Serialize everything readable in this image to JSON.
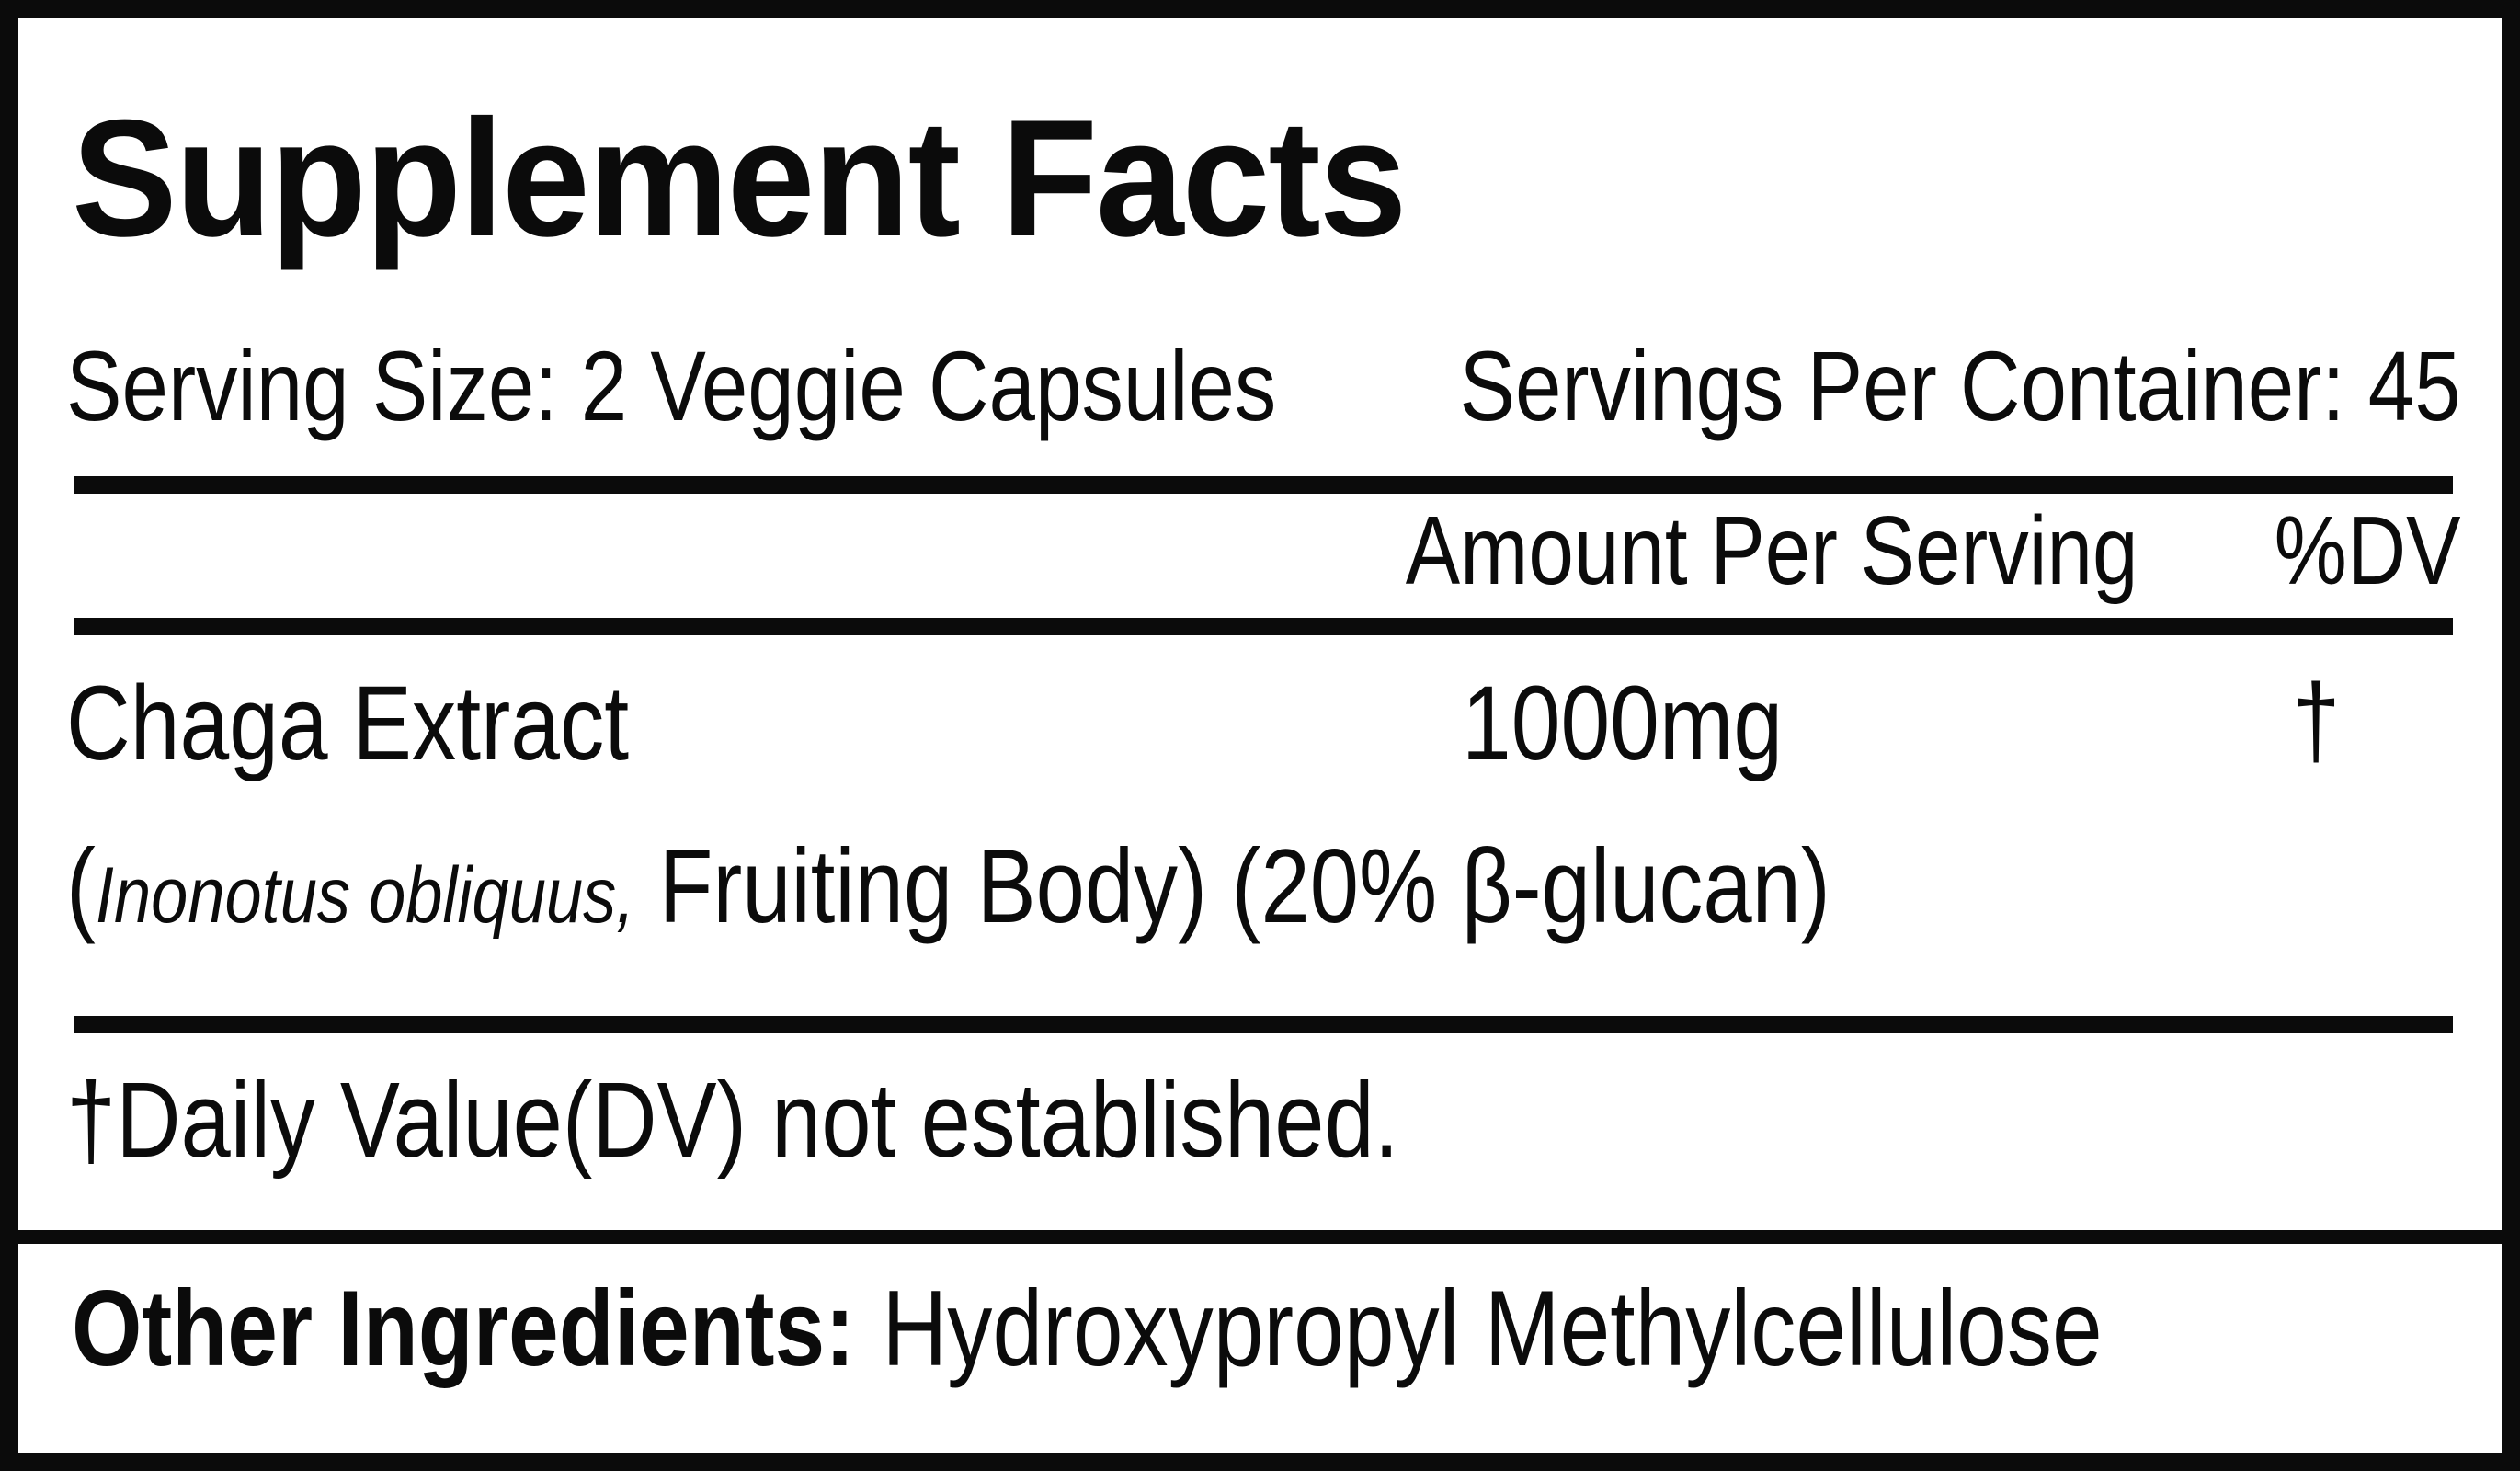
{
  "label": {
    "title": "Supplement Facts",
    "serving_size": "Serving Size: 2 Veggie Capsules",
    "servings_per_container": "Servings Per Container: 45",
    "columns": {
      "amount": "Amount Per Serving",
      "dv": "%DV"
    },
    "rows": [
      {
        "name": "Chaga Extract",
        "detail_prefix": "(",
        "detail_italic": "Inonotus obliquus,",
        "detail_suffix": " Fruiting Body) (20% β-glucan)",
        "amount": "1000mg",
        "dv": "†"
      }
    ],
    "footnote": "†Daily Value(DV) not established.",
    "other_ingredients_label": "Other Ingredients:",
    "other_ingredients_value": "Hydroxypropyl Methylcellulose",
    "colors": {
      "ink": "#0b0b0b",
      "background": "#ffffff"
    }
  }
}
